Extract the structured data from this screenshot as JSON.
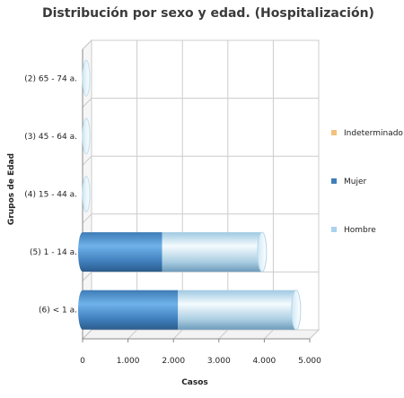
{
  "chart_data": {
    "type": "bar",
    "orientation": "horizontal",
    "stacked": true,
    "style": "3d-cylinder",
    "title": "Distribución por sexo y edad. (Hospitalización)",
    "xlabel": "Casos",
    "ylabel": "Grupos de Edad",
    "categories": [
      "(2) 65 - 74 a.",
      "(3) 45 - 64 a.",
      "(4) 15 - 44 a.",
      "(5) 1 - 14 a.",
      "(6) < 1 a."
    ],
    "series": [
      {
        "name": "Mujer",
        "values": [
          0,
          0,
          0,
          1750,
          2100
        ]
      },
      {
        "name": "Hombre",
        "values": [
          0,
          0,
          0,
          2200,
          2600
        ]
      },
      {
        "name": "Indeterminado",
        "values": [
          0,
          0,
          0,
          0,
          0
        ]
      }
    ],
    "xlim": [
      0,
      5000
    ],
    "xticks": [
      0,
      1000,
      2000,
      3000,
      4000,
      5000
    ],
    "xtick_labels": [
      "0",
      "1.000",
      "2.000",
      "3.000",
      "4.000",
      "5.000"
    ],
    "grid": true,
    "legend": {
      "position": "right",
      "items": [
        {
          "name": "Indeterminado",
          "color": "#f2c27a"
        },
        {
          "name": "Mujer",
          "color": "#3f7fb8"
        },
        {
          "name": "Hombre",
          "color": "#a9d3ee"
        }
      ]
    }
  }
}
